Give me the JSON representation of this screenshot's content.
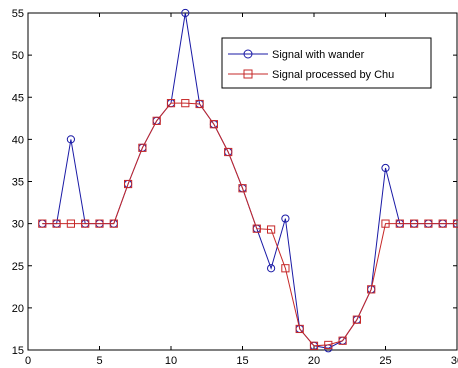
{
  "chart_data": {
    "type": "line",
    "xlim": [
      0,
      30
    ],
    "ylim": [
      15,
      55
    ],
    "x_ticks": [
      0,
      5,
      10,
      15,
      20,
      25,
      30
    ],
    "y_ticks": [
      15,
      20,
      25,
      30,
      35,
      40,
      45,
      50,
      55
    ],
    "grid": false,
    "legend_position": "top-right",
    "series": [
      {
        "name": "Signal with wander",
        "color": "#1a1aa6",
        "marker": "circle",
        "x": [
          1,
          2,
          3,
          4,
          5,
          6,
          7,
          8,
          9,
          10,
          11,
          12,
          13,
          14,
          15,
          16,
          17,
          18,
          19,
          20,
          21,
          22,
          23,
          24,
          25,
          26,
          27,
          28,
          29,
          30
        ],
        "y": [
          30,
          30,
          40,
          30,
          30,
          30,
          34.7,
          39,
          42.2,
          44.3,
          55,
          44.2,
          41.8,
          38.5,
          34.2,
          29.4,
          24.7,
          30.6,
          17.5,
          15.5,
          15.2,
          16.1,
          18.6,
          22.2,
          36.6,
          30,
          30,
          30,
          30,
          30
        ]
      },
      {
        "name": "Signal processed by Chu",
        "color": "#c62828",
        "marker": "square",
        "x": [
          1,
          2,
          3,
          4,
          5,
          6,
          7,
          8,
          9,
          10,
          11,
          12,
          13,
          14,
          15,
          16,
          17,
          18,
          19,
          20,
          21,
          22,
          23,
          24,
          25,
          26,
          27,
          28,
          29,
          30
        ],
        "y": [
          30,
          30,
          30,
          30,
          30,
          30,
          34.7,
          39,
          42.2,
          44.3,
          44.3,
          44.2,
          41.8,
          38.5,
          34.2,
          29.4,
          29.3,
          24.7,
          17.5,
          15.5,
          15.6,
          16.1,
          18.6,
          22.2,
          30,
          30,
          30,
          30,
          30,
          30
        ]
      }
    ]
  }
}
